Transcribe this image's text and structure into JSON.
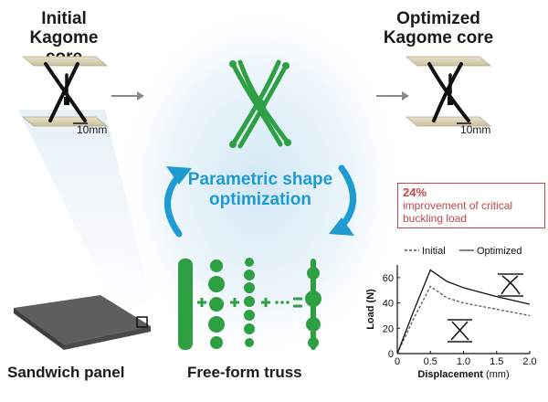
{
  "titles": {
    "initial": "Initial Kagome core",
    "optimized": "Optimized Kagome core"
  },
  "scale_bar": {
    "initial": "10mm",
    "optimized": "10mm"
  },
  "center": {
    "label": "Parametric shape optimization"
  },
  "captions": {
    "sandwich": "Sandwich panel",
    "truss": "Free-form truss"
  },
  "callout": {
    "percent": "24%",
    "text": "improvement of critical buckling load"
  },
  "colors": {
    "truss_green": "#2ea043",
    "accent_blue": "#1e9bd0",
    "callout_red": "#c0474a"
  },
  "chart_data": {
    "type": "line",
    "xlabel_bold": "Displacement",
    "xlabel_unit": "(mm)",
    "ylabel": "Load (N)",
    "xlim": [
      0,
      2.0
    ],
    "ylim": [
      0,
      70
    ],
    "x_ticks": [
      "0",
      "0.5",
      "1.0",
      "1.5",
      "2.0"
    ],
    "y_ticks": [
      "0",
      "20",
      "40",
      "60"
    ],
    "legend": "top",
    "series": [
      {
        "name": "Initial",
        "style": "dashed",
        "x": [
          0,
          0.25,
          0.5,
          0.75,
          1.0,
          1.5,
          2.0
        ],
        "y": [
          0,
          28,
          53,
          44,
          40,
          35,
          30
        ]
      },
      {
        "name": "Optimized",
        "style": "solid",
        "x": [
          0,
          0.25,
          0.5,
          0.75,
          1.0,
          1.5,
          2.0
        ],
        "y": [
          0,
          34,
          66,
          57,
          52,
          45,
          39
        ]
      }
    ]
  }
}
